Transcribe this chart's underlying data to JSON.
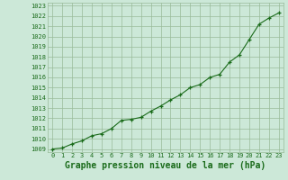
{
  "hours": [
    0,
    1,
    2,
    3,
    4,
    5,
    6,
    7,
    8,
    9,
    10,
    11,
    12,
    13,
    14,
    15,
    16,
    17,
    18,
    19,
    20,
    21,
    22,
    23
  ],
  "pressure": [
    1009.0,
    1009.1,
    1009.5,
    1009.8,
    1010.3,
    1010.5,
    1011.0,
    1011.8,
    1011.9,
    1012.1,
    1012.7,
    1013.2,
    1013.8,
    1014.3,
    1015.0,
    1015.3,
    1016.0,
    1016.3,
    1017.5,
    1018.2,
    1019.7,
    1021.2,
    1021.8,
    1022.3
  ],
  "ylim_min": 1008.7,
  "ylim_max": 1023.3,
  "xlim_min": -0.5,
  "xlim_max": 23.5,
  "yticks": [
    1009,
    1010,
    1011,
    1012,
    1013,
    1014,
    1015,
    1016,
    1017,
    1018,
    1019,
    1020,
    1021,
    1022,
    1023
  ],
  "xticks": [
    0,
    1,
    2,
    3,
    4,
    5,
    6,
    7,
    8,
    9,
    10,
    11,
    12,
    13,
    14,
    15,
    16,
    17,
    18,
    19,
    20,
    21,
    22,
    23
  ],
  "line_color": "#1a6b1a",
  "marker": "+",
  "bg_color": "#cce8d8",
  "grid_color": "#99bb99",
  "tick_color": "#1a6b1a",
  "axis_label_color": "#1a6b1a",
  "tick_fontsize": 5.0,
  "xlabel_fontsize": 7.0,
  "xlabel": "Graphe pression niveau de la mer (hPa)",
  "linewidth": 0.8,
  "markersize": 3.5,
  "markeredgewidth": 0.9
}
